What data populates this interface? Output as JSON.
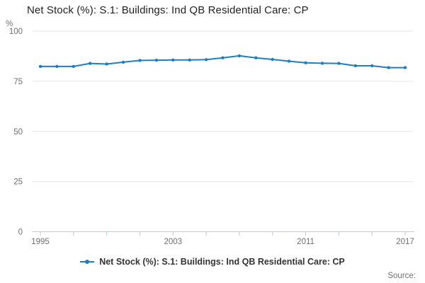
{
  "title": "Net Stock (%): S.1: Buildings: Ind QB Residential Care: CP",
  "legend": {
    "label": "Net Stock (%): S.1: Buildings: Ind QB Residential Care: CP"
  },
  "source": {
    "label": "Source:"
  },
  "colors": {
    "line": "#1d7fc3",
    "grid": "#e6e6e6",
    "axis": "#bcc9dc",
    "axis_text": "#6f6f6f",
    "title_text": "#222222",
    "legend_text": "#333333"
  },
  "chart_data": {
    "type": "line",
    "title": "Net Stock (%): S.1: Buildings: Ind QB Residential Care: CP",
    "xlabel": "",
    "ylabel": "%",
    "ylim": [
      0,
      100
    ],
    "grid": true,
    "legend_position": "bottom",
    "x": [
      1995,
      1996,
      1997,
      1998,
      1999,
      2000,
      2001,
      2002,
      2003,
      2004,
      2005,
      2006,
      2007,
      2008,
      2009,
      2010,
      2011,
      2012,
      2013,
      2014,
      2015,
      2016,
      2017
    ],
    "values": [
      82.4,
      82.4,
      82.4,
      83.9,
      83.6,
      84.5,
      85.4,
      85.5,
      85.6,
      85.6,
      85.8,
      86.7,
      87.7,
      86.7,
      85.9,
      85.0,
      84.2,
      84.0,
      83.9,
      82.7,
      82.7,
      81.8,
      81.8
    ],
    "y_ticks": [
      100,
      75,
      50,
      25,
      0
    ],
    "x_tick_years": [
      1995,
      1997,
      1999,
      2001,
      2003,
      2005,
      2007,
      2009,
      2011,
      2013,
      2015,
      2017
    ],
    "x_labeled_years": [
      1995,
      2003,
      2011,
      2017
    ],
    "x_tick_labels": [
      "1995",
      "2003",
      "2011",
      "2017"
    ]
  }
}
